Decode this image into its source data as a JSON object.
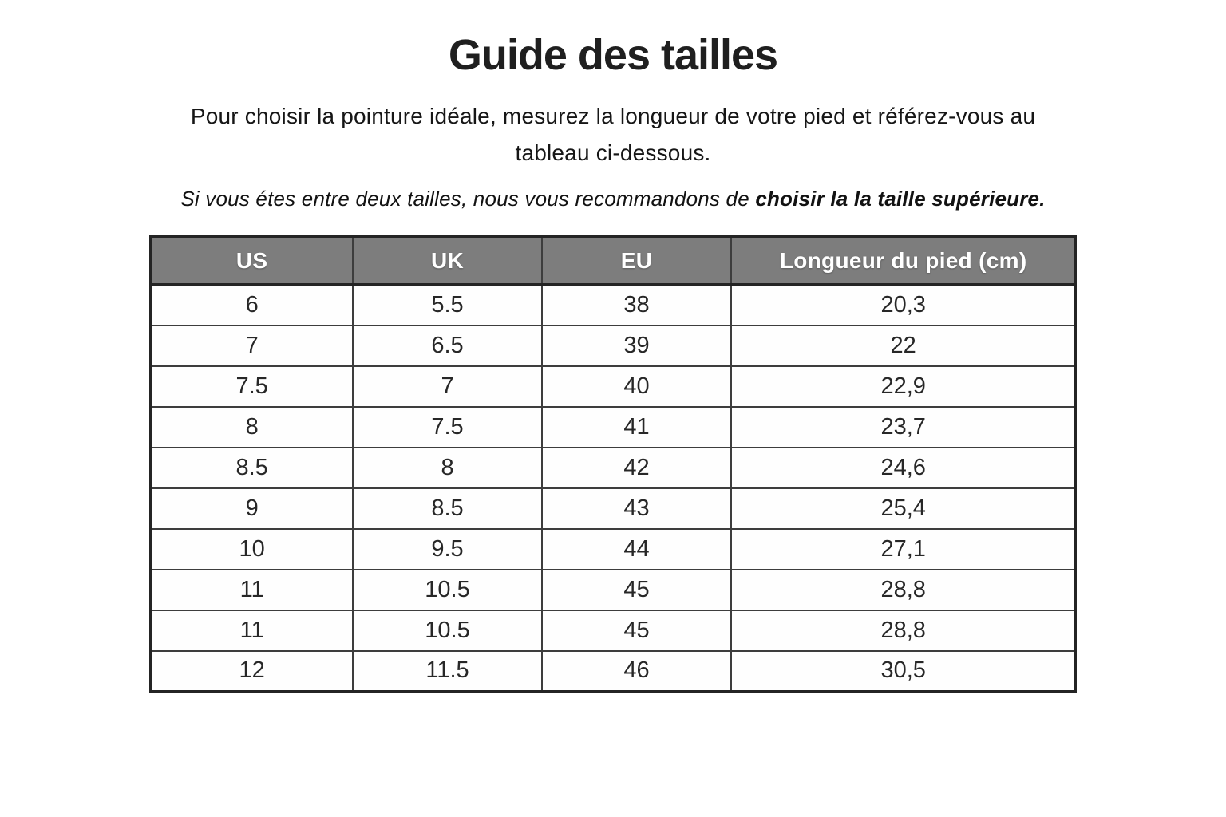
{
  "page": {
    "title": "Guide des tailles",
    "intro_lines": [
      "Pour choisir la pointure idéale, mesurez la longueur de votre pied et référez-vous au",
      "tableau ci-dessous."
    ],
    "note_regular": "Si vous étes entre deux tailles, nous vous recommandons de ",
    "note_bold": "choisir la la taille supérieure."
  },
  "table": {
    "headers": [
      "US",
      "UK",
      "EU",
      "Longueur du pied (cm)"
    ],
    "rows": [
      [
        "6",
        "5.5",
        "38",
        "20,3"
      ],
      [
        "7",
        "6.5",
        "39",
        "22"
      ],
      [
        "7.5",
        "7",
        "40",
        "22,9"
      ],
      [
        "8",
        "7.5",
        "41",
        "23,7"
      ],
      [
        "8.5",
        "8",
        "42",
        "24,6"
      ],
      [
        "9",
        "8.5",
        "43",
        "25,4"
      ],
      [
        "10",
        "9.5",
        "44",
        "27,1"
      ],
      [
        "11",
        "10.5",
        "45",
        "28,8"
      ],
      [
        "11",
        "10.5",
        "45",
        "28,8"
      ],
      [
        "12",
        "11.5",
        "46",
        "30,5"
      ]
    ],
    "colors": {
      "header_bg": "#7d7d7d",
      "header_text": "#ffffff",
      "border_outer": "#242424",
      "border_inner": "#3d3d3d",
      "cell_text": "#272727"
    }
  }
}
